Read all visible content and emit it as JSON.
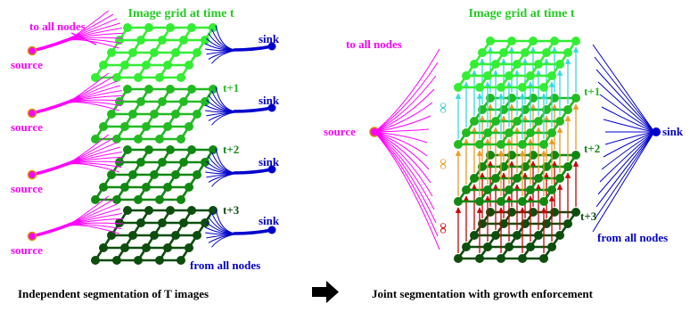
{
  "left_panel": {
    "title": "Image grid at time t",
    "to_all_nodes": "to all nodes",
    "from_all_nodes": "from all nodes",
    "source_label": "source",
    "sink_label": "sink",
    "layer_labels": [
      "t+1",
      "t+2",
      "t+3"
    ],
    "caption": "Independent segmentation of T images"
  },
  "right_panel": {
    "title": "Image grid at time t",
    "to_all_nodes": "to all nodes",
    "from_all_nodes": "from all nodes",
    "source_label": "source",
    "sink_label": "sink",
    "layer_labels": [
      "t+1",
      "t+2",
      "t+3"
    ],
    "infinity": "∞",
    "caption": "Joint segmentation with growth enforcement"
  },
  "colors": {
    "source": "#ff00ff",
    "sink": "#0000cc",
    "layers": [
      "#33ee33",
      "#22bb22",
      "#118811",
      "#0d4d0d"
    ],
    "title": "#22cc22",
    "up_arrows": [
      "#33dddd",
      "#ee9922",
      "#cc0000"
    ]
  }
}
